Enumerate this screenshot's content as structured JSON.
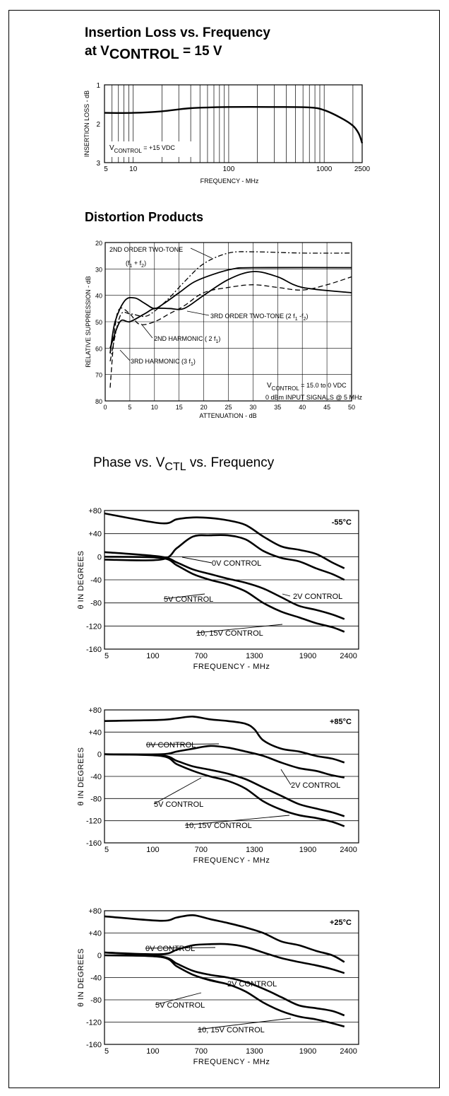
{
  "insertion_loss": {
    "title_line1": "Insertion Loss vs. Frequency",
    "title_line2_prefix": "at V",
    "title_line2_sub": "CONTROL",
    "title_line2_suffix": " = 15 V",
    "annotation_prefix": "V",
    "annotation_sub": "CONTROL",
    "annotation_suffix": " = +15 VDC",
    "xlabel": "FREQUENCY - MHz",
    "ylabel": "INSERTION LOSS - dB",
    "chart_data": {
      "type": "line",
      "xscale": "log",
      "xlim": [
        5,
        2500
      ],
      "ylim": [
        1,
        3
      ],
      "x_ticks": [
        "5",
        "10",
        "100",
        "1000",
        "2500"
      ],
      "y_ticks": [
        "1",
        "2",
        "3"
      ],
      "series": [
        {
          "x": [
            5,
            10,
            20,
            40,
            100,
            300,
            700,
            1000,
            1500,
            2000,
            2300,
            2500
          ],
          "y": [
            1.72,
            1.72,
            1.68,
            1.6,
            1.57,
            1.57,
            1.58,
            1.65,
            1.85,
            2.05,
            2.25,
            2.5
          ]
        }
      ]
    }
  },
  "distortion": {
    "title": "Distortion Products",
    "xlabel": "ATTENUATION - dB",
    "ylabel": "RELATIVE SUPPRESSION - dB",
    "note_line1_prefix": "V",
    "note_line1_sub": "CONTROL",
    "note_line1_suffix": " = 15.0 to 0 VDC",
    "note_line2": "0 dBm  INPUT SIGNALS @ 5 MHz",
    "chart_data": {
      "type": "line",
      "xlim": [
        0,
        50
      ],
      "ylim": [
        80,
        20
      ],
      "x_ticks": [
        "0",
        "5",
        "10",
        "15",
        "20",
        "25",
        "30",
        "35",
        "40",
        "45",
        "50"
      ],
      "y_ticks": [
        "20",
        "30",
        "40",
        "50",
        "60",
        "70",
        "80"
      ],
      "series": [
        {
          "name": "2ND ORDER TWO-TONE (f1 + f2)",
          "style": "dashdot",
          "x": [
            1,
            3,
            5,
            8,
            10,
            13,
            16,
            20,
            25,
            30,
            40,
            50
          ],
          "y": [
            65,
            48,
            47,
            48,
            46,
            41,
            35,
            28,
            24,
            23.5,
            24,
            24
          ]
        },
        {
          "name": "3RD ORDER TWO-TONE (2f1 - f2)",
          "style": "solid",
          "x": [
            1,
            3,
            5,
            8,
            10,
            13,
            16,
            20,
            25,
            30,
            35,
            40,
            50
          ],
          "y": [
            60,
            50,
            50,
            47,
            45,
            45,
            45,
            40,
            34,
            31,
            33,
            37,
            39
          ]
        },
        {
          "name": "2ND HARMONIC (2f1)",
          "style": "solid",
          "x": [
            1,
            2,
            4,
            6,
            8,
            10,
            12,
            15,
            18,
            22,
            26,
            30,
            50
          ],
          "y": [
            62,
            50,
            42,
            41,
            43,
            45,
            43,
            39,
            35,
            32,
            30,
            29.5,
            29.5
          ]
        },
        {
          "name": "3RD HARMONIC (3f1)",
          "style": "dashed",
          "x": [
            1,
            2,
            3,
            5,
            7,
            10,
            13,
            16,
            20,
            25,
            30,
            35,
            40,
            45,
            50
          ],
          "y": [
            75,
            52,
            45,
            47,
            51,
            50,
            47,
            44,
            39,
            37,
            36,
            37,
            38,
            36,
            33
          ]
        }
      ],
      "labels": [
        "2ND ORDER TWO-TONE",
        "(f",
        "1",
        " + f",
        "2",
        ")",
        "3RD ORDER TWO-TONE (2 f",
        "1",
        "  -f",
        "2",
        ")",
        "2ND HARMONIC ( 2 f",
        "1",
        ")",
        "3RD HARMONIC (3 f",
        "1",
        ")"
      ]
    }
  },
  "phase": {
    "title_prefix": "Phase vs. V",
    "title_sub": "CTL",
    "title_suffix": " vs. Frequency",
    "xlabel": "FREQUENCY - MHz",
    "ylabel": "θ IN DEGREES",
    "x_ticks": [
      "5",
      "100",
      "700",
      "1300",
      "1900",
      "2400"
    ],
    "y_ticks": [
      "+80",
      "+40",
      "0",
      "-40",
      "-80",
      "-120",
      "-160"
    ],
    "charts": [
      {
        "temp": "-55°C",
        "chart_data": {
          "type": "line",
          "xlim": [
            5,
            2400
          ],
          "ylim": [
            -160,
            80
          ],
          "series": [
            {
              "name": "0V CONTROL",
              "x": [
                5,
                200,
                400,
                600,
                800,
                1000,
                1200,
                1400,
                1600,
                1800,
                2000,
                2200,
                2350
              ],
              "y": [
                75,
                58,
                65,
                68,
                67,
                63,
                55,
                35,
                18,
                12,
                5,
                -10,
                -20
              ]
            },
            {
              "name": "2V CONTROL",
              "x": [
                5,
                200,
                400,
                600,
                800,
                1000,
                1200,
                1400,
                1600,
                1800,
                2000,
                2200,
                2350
              ],
              "y": [
                -5,
                -5,
                15,
                35,
                37,
                37,
                30,
                10,
                -2,
                -8,
                -20,
                -30,
                -40
              ]
            },
            {
              "name": "5V CONTROL",
              "x": [
                5,
                200,
                400,
                600,
                800,
                1000,
                1200,
                1400,
                1600,
                1800,
                2000,
                2200,
                2350
              ],
              "y": [
                8,
                0,
                -10,
                -22,
                -30,
                -38,
                -45,
                -55,
                -70,
                -85,
                -92,
                -100,
                -108
              ]
            },
            {
              "name": "10, 15V CONTROL",
              "x": [
                5,
                200,
                400,
                600,
                800,
                1000,
                1200,
                1400,
                1600,
                1800,
                2000,
                2200,
                2350
              ],
              "y": [
                0,
                -2,
                -15,
                -30,
                -40,
                -48,
                -60,
                -80,
                -95,
                -105,
                -115,
                -122,
                -130
              ]
            }
          ]
        }
      },
      {
        "temp": "+85°C",
        "chart_data": {
          "type": "line",
          "xlim": [
            5,
            2400
          ],
          "ylim": [
            -160,
            80
          ],
          "series": [
            {
              "name": "0V CONTROL",
              "x": [
                5,
                200,
                400,
                600,
                800,
                1000,
                1200,
                1300,
                1400,
                1600,
                1800,
                2000,
                2200,
                2350
              ],
              "y": [
                60,
                62,
                65,
                68,
                63,
                60,
                55,
                45,
                25,
                10,
                5,
                -3,
                -8,
                -15
              ]
            },
            {
              "name": "2V CONTROL",
              "x": [
                5,
                200,
                400,
                600,
                800,
                1000,
                1200,
                1400,
                1600,
                1800,
                2000,
                2200,
                2350
              ],
              "y": [
                0,
                0,
                5,
                10,
                15,
                12,
                5,
                -3,
                -15,
                -25,
                -30,
                -38,
                -42
              ]
            },
            {
              "name": "5V CONTROL",
              "x": [
                5,
                200,
                400,
                600,
                800,
                1000,
                1200,
                1400,
                1600,
                1800,
                2000,
                2200,
                2350
              ],
              "y": [
                0,
                -2,
                -12,
                -22,
                -28,
                -35,
                -45,
                -60,
                -75,
                -90,
                -98,
                -105,
                -112
              ]
            },
            {
              "name": "10, 15V CONTROL",
              "x": [
                5,
                200,
                400,
                600,
                800,
                1000,
                1200,
                1400,
                1600,
                1800,
                2000,
                2200,
                2350
              ],
              "y": [
                0,
                -3,
                -18,
                -30,
                -40,
                -48,
                -62,
                -85,
                -100,
                -110,
                -115,
                -122,
                -130
              ]
            }
          ]
        }
      },
      {
        "temp": "+25°C",
        "chart_data": {
          "type": "line",
          "xlim": [
            5,
            2400
          ],
          "ylim": [
            -160,
            80
          ],
          "series": [
            {
              "name": "0V CONTROL",
              "x": [
                5,
                200,
                400,
                600,
                800,
                1000,
                1200,
                1400,
                1600,
                1800,
                2000,
                2200,
                2350
              ],
              "y": [
                70,
                62,
                68,
                72,
                65,
                58,
                50,
                40,
                25,
                18,
                8,
                0,
                -12
              ]
            },
            {
              "name": "2V CONTROL",
              "x": [
                5,
                200,
                400,
                600,
                800,
                1000,
                1200,
                1400,
                1600,
                1800,
                2000,
                2200,
                2350
              ],
              "y": [
                5,
                2,
                10,
                18,
                20,
                20,
                15,
                5,
                -5,
                -12,
                -18,
                -25,
                -32
              ]
            },
            {
              "name": "5V CONTROL",
              "x": [
                5,
                200,
                400,
                600,
                800,
                1000,
                1200,
                1400,
                1600,
                1800,
                2000,
                2200,
                2350
              ],
              "y": [
                5,
                -2,
                -15,
                -28,
                -35,
                -40,
                -48,
                -60,
                -75,
                -90,
                -95,
                -100,
                -108
              ]
            },
            {
              "name": "10, 15V CONTROL",
              "x": [
                5,
                200,
                400,
                600,
                800,
                1000,
                1200,
                1400,
                1600,
                1800,
                2000,
                2200,
                2350
              ],
              "y": [
                0,
                -3,
                -20,
                -35,
                -45,
                -52,
                -65,
                -85,
                -100,
                -110,
                -115,
                -122,
                -128
              ]
            }
          ]
        }
      }
    ]
  }
}
